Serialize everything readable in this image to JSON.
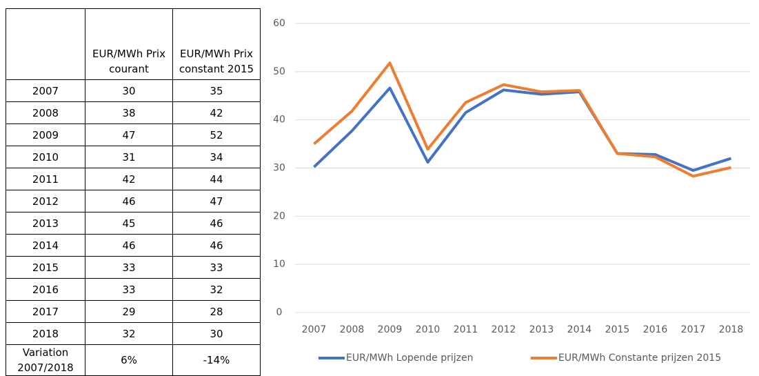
{
  "table": {
    "header": [
      "EUR/MWh Prix courant",
      "EUR/MWh Prix constant 2015"
    ],
    "rows": [
      [
        "2007",
        "30",
        "35"
      ],
      [
        "2008",
        "38",
        "42"
      ],
      [
        "2009",
        "47",
        "52"
      ],
      [
        "2010",
        "31",
        "34"
      ],
      [
        "2011",
        "42",
        "44"
      ],
      [
        "2012",
        "46",
        "47"
      ],
      [
        "2013",
        "45",
        "46"
      ],
      [
        "2014",
        "46",
        "46"
      ],
      [
        "2015",
        "33",
        "33"
      ],
      [
        "2016",
        "33",
        "32"
      ],
      [
        "2017",
        "29",
        "28"
      ],
      [
        "2018",
        "32",
        "30"
      ],
      [
        "Variation 2007/2018",
        "6%",
        "-14%"
      ]
    ]
  },
  "chart_data": {
    "type": "line",
    "categories": [
      "2007",
      "2008",
      "2009",
      "2010",
      "2011",
      "2012",
      "2013",
      "2014",
      "2015",
      "2016",
      "2017",
      "2018"
    ],
    "series": [
      {
        "name": "EUR/MWh Lopende prijzen",
        "color": "#4472c4",
        "values": [
          30.2,
          37.7,
          46.6,
          31.2,
          41.5,
          46.2,
          45.3,
          45.8,
          33.0,
          32.8,
          29.5,
          32.0
        ]
      },
      {
        "name": "EUR/MWh Constante prijzen 2015",
        "color": "#ed7d31",
        "values": [
          35.0,
          41.8,
          51.8,
          33.9,
          43.6,
          47.3,
          45.8,
          46.1,
          33.0,
          32.3,
          28.3,
          30.1
        ]
      }
    ],
    "ylim": [
      0,
      60
    ],
    "yticks": [
      0,
      10,
      20,
      30,
      40,
      50,
      60
    ],
    "grid": true,
    "legend": "bottom"
  }
}
